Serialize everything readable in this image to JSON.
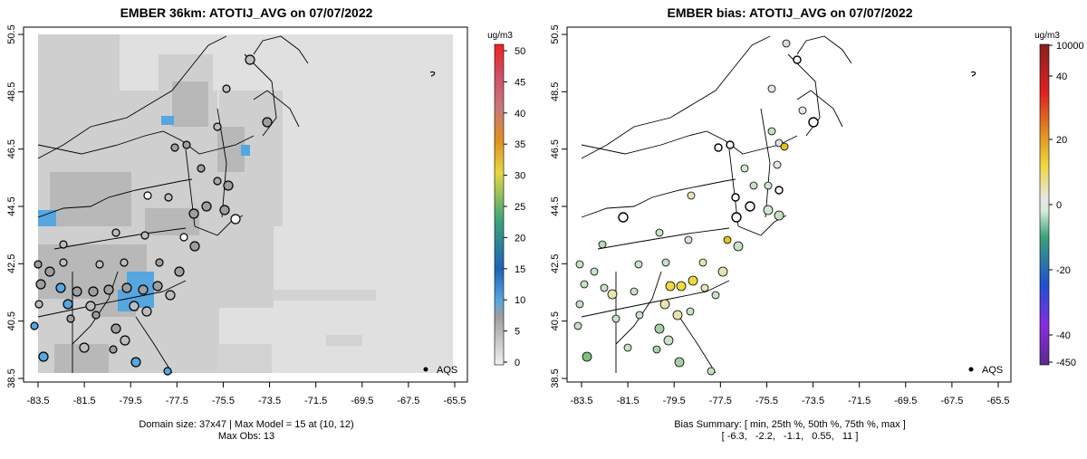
{
  "left_panel": {
    "title": "EMBER 36km: ATOTIJ_AVG on 07/07/2022",
    "colorbar": {
      "unit": "ug/m3",
      "ticks": [
        "0",
        "5",
        "10",
        "15",
        "20",
        "25",
        "30",
        "35",
        "40",
        "45",
        "50"
      ]
    },
    "footer_line1": "Domain size: 37x47 | Max Model = 15 at (10, 12)",
    "footer_line2": "Max Obs: 13",
    "legend_label": "AQS"
  },
  "right_panel": {
    "title": "EMBER bias: ATOTIJ_AVG on 07/07/2022",
    "colorbar": {
      "unit": "ug/m3",
      "ticks": [
        "10000",
        "40",
        "20",
        "0",
        "-20",
        "-40",
        "-450"
      ]
    },
    "footer_line1": "Bias Summary: [ min, 25th %, 50th %, 75th %, max ]",
    "footer_line2": "[ -6.3,   -2.2,   -1.1,   0.55,   11 ]",
    "legend_label": "AQS"
  },
  "axes": {
    "lon_ticks": [
      "-83.5",
      "-81.5",
      "-79.5",
      "-77.5",
      "-75.5",
      "-73.5",
      "-71.5",
      "-69.5",
      "-67.5",
      "-65.5"
    ],
    "lat_ticks": [
      "38.5",
      "40.5",
      "42.5",
      "44.5",
      "46.5",
      "48.5",
      "50.5"
    ]
  },
  "colors": {
    "land_gray": "#e0e0e0",
    "low_gray": "#b8b8b8",
    "hotspot_blue": "#56a6e0",
    "legend_point": "#000000"
  }
}
